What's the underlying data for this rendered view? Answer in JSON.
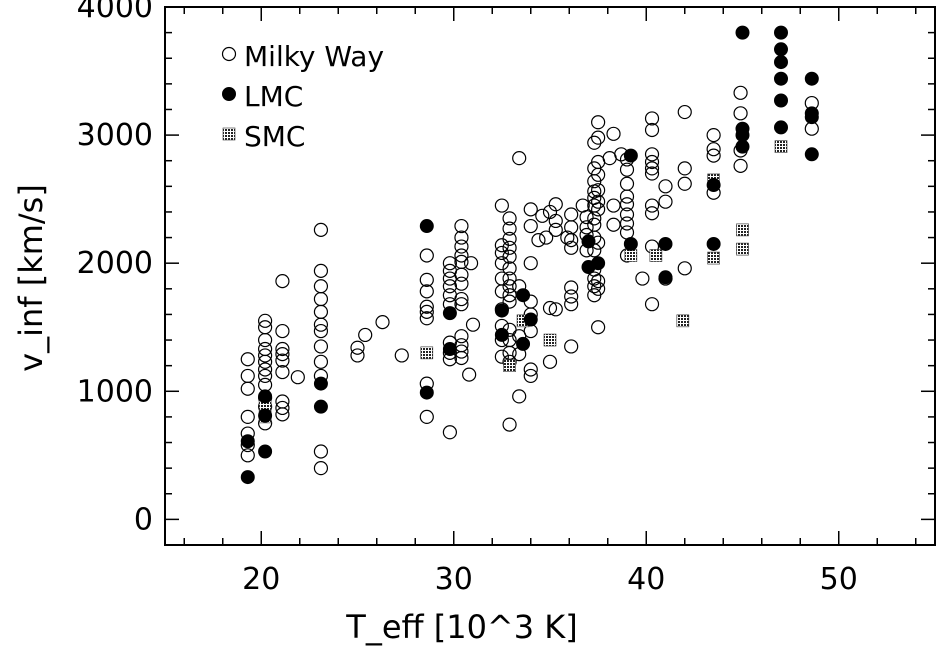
{
  "chart_data": {
    "type": "scatter",
    "xlabel": "T_eff [10^3 K]",
    "ylabel": "v_inf [km/s]",
    "xlim": [
      15,
      55
    ],
    "ylim": [
      -200,
      4000
    ],
    "xticks": [
      20,
      30,
      40,
      50
    ],
    "yticks": [
      0,
      1000,
      2000,
      3000,
      4000
    ],
    "grid": false,
    "legend": "top-left",
    "series": [
      {
        "name": "Milky Way",
        "marker": "open-circle",
        "points": [
          [
            19.3,
            1250
          ],
          [
            19.3,
            1120
          ],
          [
            19.3,
            1020
          ],
          [
            19.3,
            800
          ],
          [
            19.3,
            670
          ],
          [
            19.3,
            580
          ],
          [
            19.3,
            500
          ],
          [
            20.2,
            1550
          ],
          [
            20.2,
            1500
          ],
          [
            20.2,
            1400
          ],
          [
            20.2,
            1330
          ],
          [
            20.2,
            1280
          ],
          [
            20.2,
            1230
          ],
          [
            20.2,
            1170
          ],
          [
            20.2,
            1120
          ],
          [
            20.2,
            1050
          ],
          [
            20.2,
            950
          ],
          [
            20.2,
            880
          ],
          [
            20.2,
            750
          ],
          [
            21.1,
            1860
          ],
          [
            21.1,
            1470
          ],
          [
            21.1,
            1330
          ],
          [
            21.1,
            1290
          ],
          [
            21.1,
            1240
          ],
          [
            21.1,
            1150
          ],
          [
            21.1,
            920
          ],
          [
            21.1,
            870
          ],
          [
            21.1,
            820
          ],
          [
            21.9,
            1110
          ],
          [
            23.1,
            2260
          ],
          [
            23.1,
            1940
          ],
          [
            23.1,
            1820
          ],
          [
            23.1,
            1720
          ],
          [
            23.1,
            1620
          ],
          [
            23.1,
            1520
          ],
          [
            23.1,
            1470
          ],
          [
            23.1,
            1350
          ],
          [
            23.1,
            1230
          ],
          [
            23.1,
            1120
          ],
          [
            23.1,
            530
          ],
          [
            23.1,
            400
          ],
          [
            25.0,
            1340
          ],
          [
            25.0,
            1280
          ],
          [
            25.4,
            1440
          ],
          [
            26.3,
            1540
          ],
          [
            27.3,
            1280
          ],
          [
            28.6,
            2060
          ],
          [
            28.6,
            1870
          ],
          [
            28.6,
            1780
          ],
          [
            28.6,
            1660
          ],
          [
            28.6,
            1620
          ],
          [
            28.6,
            1570
          ],
          [
            28.6,
            1060
          ],
          [
            28.6,
            800
          ],
          [
            29.8,
            2000
          ],
          [
            29.8,
            1940
          ],
          [
            29.8,
            1880
          ],
          [
            29.8,
            1820
          ],
          [
            29.8,
            1750
          ],
          [
            29.8,
            1680
          ],
          [
            29.8,
            1380
          ],
          [
            29.8,
            1300
          ],
          [
            29.8,
            1250
          ],
          [
            29.8,
            680
          ],
          [
            30.4,
            2290
          ],
          [
            30.4,
            2200
          ],
          [
            30.4,
            2130
          ],
          [
            30.4,
            2060
          ],
          [
            30.4,
            2010
          ],
          [
            30.4,
            1910
          ],
          [
            30.4,
            1840
          ],
          [
            30.4,
            1720
          ],
          [
            30.4,
            1680
          ],
          [
            30.4,
            1430
          ],
          [
            30.4,
            1360
          ],
          [
            30.4,
            1310
          ],
          [
            30.4,
            1260
          ],
          [
            30.9,
            2000
          ],
          [
            31.0,
            1520
          ],
          [
            30.8,
            1130
          ],
          [
            32.5,
            2450
          ],
          [
            32.5,
            2140
          ],
          [
            32.5,
            2080
          ],
          [
            32.5,
            2000
          ],
          [
            32.5,
            1880
          ],
          [
            32.5,
            1780
          ],
          [
            32.5,
            1640
          ],
          [
            32.5,
            1510
          ],
          [
            32.5,
            1400
          ],
          [
            32.5,
            1270
          ],
          [
            32.9,
            2350
          ],
          [
            32.9,
            2270
          ],
          [
            32.9,
            2190
          ],
          [
            32.9,
            2120
          ],
          [
            32.9,
            2050
          ],
          [
            32.9,
            1960
          ],
          [
            32.9,
            1880
          ],
          [
            32.9,
            1820
          ],
          [
            32.9,
            1750
          ],
          [
            32.9,
            1700
          ],
          [
            32.9,
            1480
          ],
          [
            32.9,
            1400
          ],
          [
            32.9,
            1300
          ],
          [
            32.9,
            1230
          ],
          [
            32.9,
            740
          ],
          [
            33.4,
            2820
          ],
          [
            33.4,
            1820
          ],
          [
            33.4,
            1430
          ],
          [
            33.4,
            1290
          ],
          [
            33.4,
            960
          ],
          [
            34.0,
            2290
          ],
          [
            34.0,
            2420
          ],
          [
            34.0,
            2000
          ],
          [
            34.0,
            1700
          ],
          [
            34.0,
            1600
          ],
          [
            34.0,
            1470
          ],
          [
            34.0,
            1170
          ],
          [
            34.0,
            1120
          ],
          [
            34.4,
            2180
          ],
          [
            34.6,
            2370
          ],
          [
            34.8,
            2200
          ],
          [
            35.0,
            2400
          ],
          [
            35.0,
            1650
          ],
          [
            35.0,
            1230
          ],
          [
            35.3,
            2460
          ],
          [
            35.3,
            2330
          ],
          [
            35.3,
            2260
          ],
          [
            35.3,
            1640
          ],
          [
            35.9,
            2200
          ],
          [
            36.1,
            2380
          ],
          [
            36.1,
            2280
          ],
          [
            36.1,
            2180
          ],
          [
            36.1,
            2120
          ],
          [
            36.1,
            1810
          ],
          [
            36.1,
            1740
          ],
          [
            36.1,
            1680
          ],
          [
            36.1,
            1350
          ],
          [
            36.7,
            2450
          ],
          [
            36.9,
            2360
          ],
          [
            36.9,
            2280
          ],
          [
            36.9,
            2220
          ],
          [
            36.9,
            2100
          ],
          [
            37.3,
            2940
          ],
          [
            37.3,
            2740
          ],
          [
            37.3,
            2640
          ],
          [
            37.3,
            2560
          ],
          [
            37.3,
            2510
          ],
          [
            37.3,
            2450
          ],
          [
            37.3,
            2350
          ],
          [
            37.3,
            2300
          ],
          [
            37.3,
            2200
          ],
          [
            37.3,
            2100
          ],
          [
            37.3,
            1950
          ],
          [
            37.3,
            1880
          ],
          [
            37.3,
            1820
          ],
          [
            37.3,
            1750
          ],
          [
            37.5,
            3100
          ],
          [
            37.5,
            2980
          ],
          [
            37.5,
            2790
          ],
          [
            37.5,
            2690
          ],
          [
            37.5,
            2570
          ],
          [
            37.5,
            2480
          ],
          [
            37.5,
            2420
          ],
          [
            37.5,
            2160
          ],
          [
            37.5,
            1860
          ],
          [
            37.5,
            1800
          ],
          [
            37.5,
            1500
          ],
          [
            38.1,
            2820
          ],
          [
            38.3,
            3010
          ],
          [
            38.3,
            2450
          ],
          [
            38.3,
            2300
          ],
          [
            38.7,
            2850
          ],
          [
            39.0,
            2810
          ],
          [
            39.0,
            2730
          ],
          [
            39.0,
            2620
          ],
          [
            39.0,
            2520
          ],
          [
            39.0,
            2460
          ],
          [
            39.0,
            2380
          ],
          [
            39.0,
            2310
          ],
          [
            39.0,
            2240
          ],
          [
            39.0,
            2060
          ],
          [
            39.8,
            1880
          ],
          [
            40.3,
            3130
          ],
          [
            40.3,
            3040
          ],
          [
            40.3,
            2850
          ],
          [
            40.3,
            2790
          ],
          [
            40.3,
            2740
          ],
          [
            40.3,
            2700
          ],
          [
            40.3,
            2450
          ],
          [
            40.3,
            2390
          ],
          [
            40.3,
            2130
          ],
          [
            40.3,
            1680
          ],
          [
            41.0,
            2600
          ],
          [
            41.0,
            2480
          ],
          [
            41.0,
            1880
          ],
          [
            42.0,
            3180
          ],
          [
            42.0,
            2740
          ],
          [
            42.0,
            2620
          ],
          [
            42.0,
            1960
          ],
          [
            43.5,
            3000
          ],
          [
            43.5,
            2890
          ],
          [
            43.5,
            2840
          ],
          [
            43.5,
            2550
          ],
          [
            44.9,
            3330
          ],
          [
            44.9,
            3170
          ],
          [
            44.9,
            2880
          ],
          [
            44.9,
            2760
          ],
          [
            48.6,
            3250
          ],
          [
            48.6,
            3050
          ]
        ]
      },
      {
        "name": "LMC",
        "marker": "filled-circle",
        "points": [
          [
            19.3,
            610
          ],
          [
            19.3,
            330
          ],
          [
            20.2,
            960
          ],
          [
            20.2,
            810
          ],
          [
            20.2,
            530
          ],
          [
            23.1,
            1060
          ],
          [
            23.1,
            880
          ],
          [
            28.6,
            2290
          ],
          [
            28.6,
            990
          ],
          [
            29.8,
            1610
          ],
          [
            29.8,
            1330
          ],
          [
            32.5,
            1630
          ],
          [
            32.5,
            1440
          ],
          [
            33.6,
            1750
          ],
          [
            33.6,
            1370
          ],
          [
            34.0,
            1560
          ],
          [
            37.0,
            2170
          ],
          [
            37.0,
            1970
          ],
          [
            37.5,
            2000
          ],
          [
            39.2,
            2840
          ],
          [
            39.2,
            2150
          ],
          [
            41.0,
            2150
          ],
          [
            41.0,
            1890
          ],
          [
            43.5,
            2610
          ],
          [
            43.5,
            2150
          ],
          [
            45.0,
            3800
          ],
          [
            45.0,
            3050
          ],
          [
            45.0,
            3000
          ],
          [
            45.0,
            2910
          ],
          [
            47.0,
            3800
          ],
          [
            47.0,
            3670
          ],
          [
            47.0,
            3570
          ],
          [
            47.0,
            3440
          ],
          [
            47.0,
            3270
          ],
          [
            47.0,
            3060
          ],
          [
            48.6,
            3440
          ],
          [
            48.6,
            3170
          ],
          [
            48.6,
            3140
          ],
          [
            48.6,
            2850
          ]
        ]
      },
      {
        "name": "SMC",
        "marker": "hatched-square",
        "points": [
          [
            20.2,
            900
          ],
          [
            20.2,
            800
          ],
          [
            28.6,
            1300
          ],
          [
            32.9,
            1200
          ],
          [
            33.6,
            1550
          ],
          [
            35.0,
            1400
          ],
          [
            39.2,
            2060
          ],
          [
            40.5,
            2060
          ],
          [
            41.9,
            1550
          ],
          [
            43.5,
            2650
          ],
          [
            43.5,
            2040
          ],
          [
            45.0,
            2260
          ],
          [
            45.0,
            2110
          ],
          [
            47.0,
            2910
          ]
        ]
      }
    ]
  }
}
